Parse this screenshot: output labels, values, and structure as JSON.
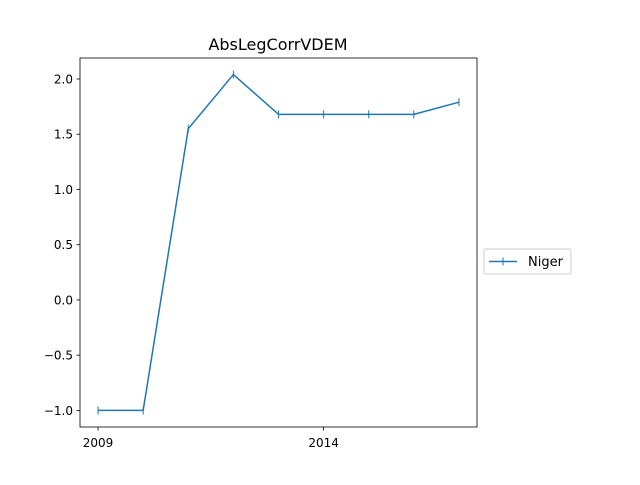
{
  "chart_data": {
    "type": "line",
    "title": "AbsLegCorrVDEM",
    "xlabel": "",
    "ylabel": "",
    "x": [
      2009,
      2010,
      2011,
      2012,
      2013,
      2014,
      2015,
      2016,
      2017
    ],
    "series": [
      {
        "name": "Niger",
        "values": [
          -1.0,
          -1.0,
          1.55,
          2.04,
          1.68,
          1.68,
          1.68,
          1.68,
          1.79
        ],
        "color": "#1f77b4",
        "marker": "vline"
      }
    ],
    "xticks": [
      2009,
      2014
    ],
    "xtick_labels": [
      "2009",
      "2014"
    ],
    "yticks": [
      -1.0,
      -0.5,
      0.0,
      0.5,
      1.0,
      1.5,
      2.0
    ],
    "ytick_labels": [
      "−1.0",
      "−0.5",
      "0.0",
      "0.5",
      "1.0",
      "1.5",
      "2.0"
    ],
    "xlim": [
      2008.6,
      2017.4
    ],
    "ylim": [
      -1.15,
      2.19
    ],
    "grid": false,
    "legend_position": "outside-right"
  }
}
